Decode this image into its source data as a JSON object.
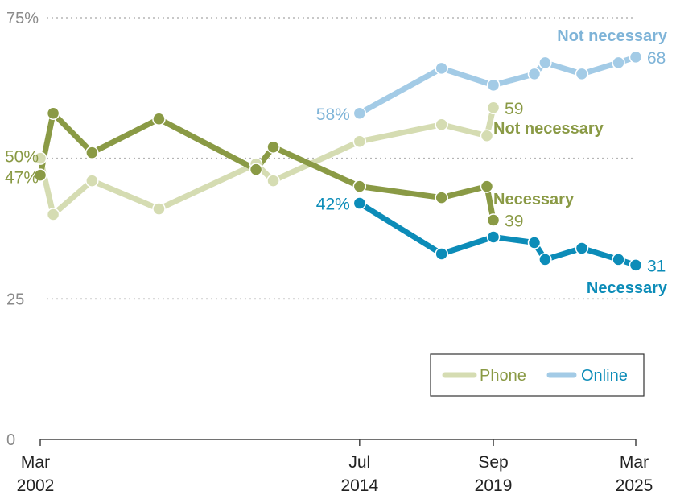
{
  "chart_data": {
    "type": "line",
    "ylim": [
      0,
      75
    ],
    "y_ticks": [
      {
        "value": 75,
        "label": "75%"
      },
      {
        "value": 50,
        "label": ""
      },
      {
        "value": 25,
        "label": "25"
      },
      {
        "value": 0,
        "label": "0"
      }
    ],
    "x_ticks": [
      {
        "date": "2002-03",
        "month": "Mar",
        "year": "2002"
      },
      {
        "date": "2014-07",
        "month": "Jul",
        "year": "2014"
      },
      {
        "date": "2019-09",
        "month": "Sep",
        "year": "2019"
      },
      {
        "date": "2025-03",
        "month": "Mar",
        "year": "2025"
      }
    ],
    "xlim": [
      "2002-03",
      "2025-03"
    ],
    "legend": {
      "position": "bottom-right",
      "items": [
        "Phone",
        "Online"
      ]
    },
    "grid": "dotted horizontal",
    "series": [
      {
        "mode": "Phone",
        "kind": "Not necessary",
        "color": "#d5dcb2",
        "points": [
          {
            "date": "2002-03",
            "value": 50,
            "label": "50%"
          },
          {
            "date": "2002-09",
            "value": 40
          },
          {
            "date": "2004-03",
            "value": 46
          },
          {
            "date": "2006-10",
            "value": 41
          },
          {
            "date": "2010-07",
            "value": 49
          },
          {
            "date": "2011-03",
            "value": 46
          },
          {
            "date": "2014-07",
            "value": 53
          },
          {
            "date": "2017-09",
            "value": 56
          },
          {
            "date": "2019-06",
            "value": 54
          },
          {
            "date": "2019-09",
            "value": 59,
            "label": "59"
          }
        ],
        "end_label": "Not necessary"
      },
      {
        "mode": "Phone",
        "kind": "Necessary",
        "color": "#8a9a45",
        "points": [
          {
            "date": "2002-03",
            "value": 47,
            "label": "47%"
          },
          {
            "date": "2002-09",
            "value": 58
          },
          {
            "date": "2004-03",
            "value": 51
          },
          {
            "date": "2006-10",
            "value": 57
          },
          {
            "date": "2010-07",
            "value": 48
          },
          {
            "date": "2011-03",
            "value": 52
          },
          {
            "date": "2014-07",
            "value": 45
          },
          {
            "date": "2017-09",
            "value": 43
          },
          {
            "date": "2019-06",
            "value": 45
          },
          {
            "date": "2019-09",
            "value": 39,
            "label": "39"
          }
        ],
        "end_label": "Necessary"
      },
      {
        "mode": "Online",
        "kind": "Not necessary",
        "color": "#a3cbe6",
        "points": [
          {
            "date": "2014-07",
            "value": 58,
            "label": "58%"
          },
          {
            "date": "2017-09",
            "value": 66
          },
          {
            "date": "2019-09",
            "value": 63
          },
          {
            "date": "2021-04",
            "value": 65
          },
          {
            "date": "2021-09",
            "value": 67
          },
          {
            "date": "2023-02",
            "value": 65
          },
          {
            "date": "2024-07",
            "value": 67
          },
          {
            "date": "2025-03",
            "value": 68,
            "label": "68"
          }
        ],
        "end_label": "Not necessary"
      },
      {
        "mode": "Online",
        "kind": "Necessary",
        "color": "#0c8cb8",
        "points": [
          {
            "date": "2014-07",
            "value": 42,
            "label": "42%"
          },
          {
            "date": "2017-09",
            "value": 33
          },
          {
            "date": "2019-09",
            "value": 36
          },
          {
            "date": "2021-04",
            "value": 35
          },
          {
            "date": "2021-09",
            "value": 32
          },
          {
            "date": "2023-02",
            "value": 34
          },
          {
            "date": "2024-07",
            "value": 32
          },
          {
            "date": "2025-03",
            "value": 31,
            "label": "31"
          }
        ],
        "end_label": "Necessary"
      }
    ]
  }
}
